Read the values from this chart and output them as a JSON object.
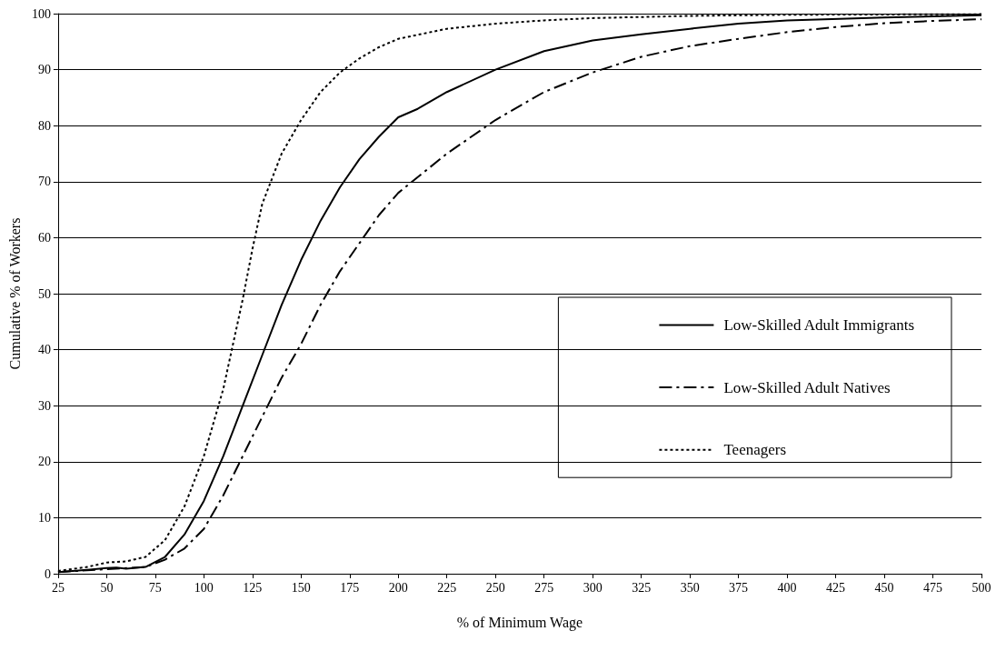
{
  "chart_data": {
    "type": "line",
    "xlabel": "% of Minimum Wage",
    "ylabel": "Cumulative % of Workers",
    "xlim": [
      25,
      500
    ],
    "xticks": [
      25,
      50,
      75,
      100,
      125,
      150,
      175,
      200,
      225,
      250,
      275,
      300,
      325,
      350,
      375,
      400,
      425,
      450,
      475,
      500
    ],
    "ylim": [
      0,
      100
    ],
    "yticks": [
      0,
      10,
      20,
      30,
      40,
      50,
      60,
      70,
      80,
      90,
      100
    ],
    "grid": "y",
    "legend": "right",
    "marker": "none",
    "series": [
      {
        "name": "Low-Skilled Adult Immigrants",
        "color": "#000000",
        "line_style": "solid",
        "x": [
          25,
          40,
          50,
          55,
          60,
          70,
          80,
          90,
          100,
          110,
          120,
          130,
          140,
          150,
          160,
          170,
          180,
          190,
          200,
          210,
          225,
          250,
          275,
          300,
          325,
          350,
          375,
          400,
          450,
          500
        ],
        "values": [
          0.3,
          0.7,
          1.0,
          1.1,
          0.9,
          1.2,
          3,
          7,
          13,
          21,
          30,
          39,
          48,
          56,
          63,
          69,
          74,
          78,
          81.5,
          83,
          86,
          90,
          93.3,
          95.2,
          96.3,
          97.3,
          98.2,
          98.8,
          99.3,
          99.7
        ]
      },
      {
        "name": "Low-Skilled Adult Natives",
        "color": "#000000",
        "line_style": "dashed",
        "x": [
          25,
          50,
          70,
          80,
          90,
          100,
          110,
          120,
          130,
          140,
          150,
          160,
          170,
          180,
          190,
          200,
          225,
          250,
          275,
          300,
          325,
          350,
          375,
          400,
          425,
          450,
          475,
          500
        ],
        "values": [
          0.3,
          0.8,
          1.2,
          2.5,
          4.5,
          8,
          14,
          21,
          28,
          35,
          41,
          48,
          54,
          59,
          64,
          68,
          75,
          81,
          86,
          89.5,
          92.3,
          94.2,
          95.5,
          96.7,
          97.6,
          98.3,
          98.7,
          99
        ]
      },
      {
        "name": "Teenagers",
        "color": "#000000",
        "line_style": "dotted",
        "x": [
          25,
          40,
          50,
          60,
          70,
          80,
          90,
          100,
          110,
          120,
          125,
          130,
          140,
          150,
          160,
          170,
          180,
          190,
          200,
          225,
          250,
          275,
          300,
          350,
          400,
          500
        ],
        "values": [
          0.5,
          1.2,
          2,
          2.2,
          3,
          6,
          12,
          21,
          33,
          49,
          58,
          66,
          75,
          81,
          86,
          89.5,
          92,
          94,
          95.5,
          97.3,
          98.2,
          98.8,
          99.2,
          99.6,
          99.8,
          99.9
        ]
      }
    ]
  }
}
